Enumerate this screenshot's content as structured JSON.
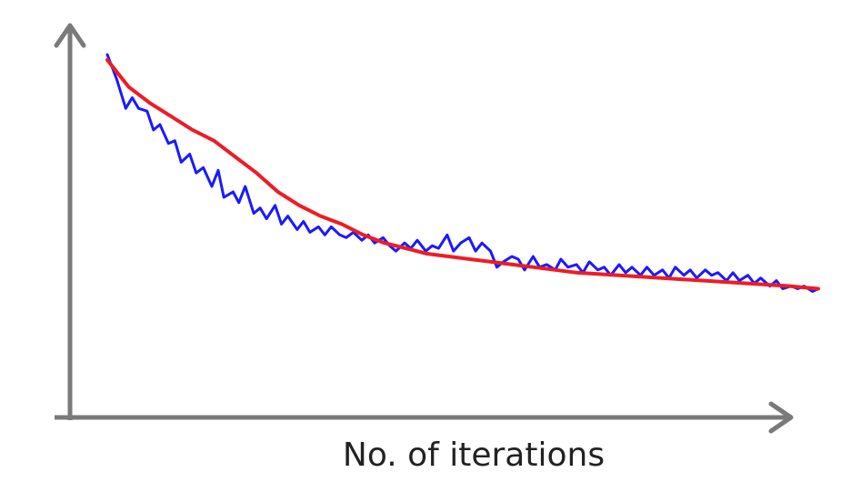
{
  "chart_data": {
    "type": "line",
    "title": "",
    "xlabel": "No. of iterations",
    "ylabel": "",
    "xlim": [
      0,
      100
    ],
    "ylim": [
      0,
      100
    ],
    "grid": false,
    "legend": "none",
    "series": [
      {
        "color": "#1a1aff",
        "x": [
          0,
          1.3,
          2.6,
          3.5,
          4.4,
          5.6,
          6.5,
          7.4,
          8.6,
          9.5,
          10.4,
          11.6,
          12.5,
          13.5,
          14.7,
          15.6,
          16.4,
          17.7,
          18.5,
          19.4,
          20.6,
          21.5,
          22.4,
          23.6,
          24.5,
          25.4,
          26.7,
          27.6,
          28.5,
          29.7,
          30.6,
          31.5,
          32.7,
          33.6,
          34.6,
          35.8,
          36.7,
          37.6,
          38.8,
          39.7,
          40.6,
          41.8,
          42.7,
          43.6,
          44.8,
          45.7,
          46.6,
          47.8,
          48.7,
          49.7,
          50.9,
          51.8,
          52.7,
          53.9,
          54.8,
          55.7,
          56.9,
          57.8,
          58.7,
          59.9,
          60.8,
          61.8,
          63.0,
          63.8,
          64.8,
          66.0,
          66.9,
          67.8,
          69.0,
          69.9,
          70.8,
          72.0,
          72.9,
          73.8,
          75.0,
          75.9,
          76.9,
          78.1,
          79.0,
          79.9,
          81.1,
          82.0,
          82.9,
          84.1,
          85.0,
          85.9,
          87.1,
          88.0,
          88.9,
          90.1,
          91.0,
          91.9,
          93.2,
          94.1,
          95.0,
          96.2,
          97.1,
          98.0,
          99.2,
          100
        ],
        "y": [
          100,
          91,
          80,
          84,
          80,
          79,
          72,
          74,
          67,
          68,
          60,
          63,
          56,
          58,
          51,
          57,
          47,
          49,
          45,
          51,
          41,
          43,
          39,
          44,
          37,
          40,
          35,
          38,
          34,
          36,
          33,
          36,
          33,
          32,
          34,
          31,
          33,
          30,
          32,
          29,
          27,
          30,
          28,
          31,
          27,
          29,
          28,
          33,
          27,
          30,
          32,
          27,
          30,
          27,
          21,
          23,
          25,
          24,
          20,
          25,
          21,
          22,
          20,
          24,
          21,
          22,
          19,
          23,
          20,
          21,
          18,
          22,
          19,
          21,
          18,
          21,
          18,
          20,
          17,
          21,
          18,
          20,
          17,
          20,
          18,
          19,
          16,
          19,
          16,
          18,
          15,
          17,
          14,
          16,
          13,
          14,
          13,
          14,
          12,
          13
        ]
      },
      {
        "color": "#ee1c25",
        "x": [
          0,
          3,
          6,
          9,
          12,
          15,
          18,
          21,
          24,
          27,
          30,
          33,
          36,
          39,
          42,
          45,
          48,
          51,
          54,
          57,
          60,
          63,
          66,
          69,
          72,
          75,
          78,
          81,
          84,
          87,
          90,
          93,
          96,
          100
        ],
        "y": [
          98,
          88,
          82,
          77,
          72,
          68,
          62,
          56,
          49,
          44,
          40,
          37,
          33,
          30,
          28,
          26,
          25,
          24,
          23,
          22,
          21,
          20,
          19,
          18.5,
          18,
          17.5,
          17,
          16.5,
          16,
          15.5,
          15,
          14.5,
          14,
          13
        ]
      }
    ]
  }
}
